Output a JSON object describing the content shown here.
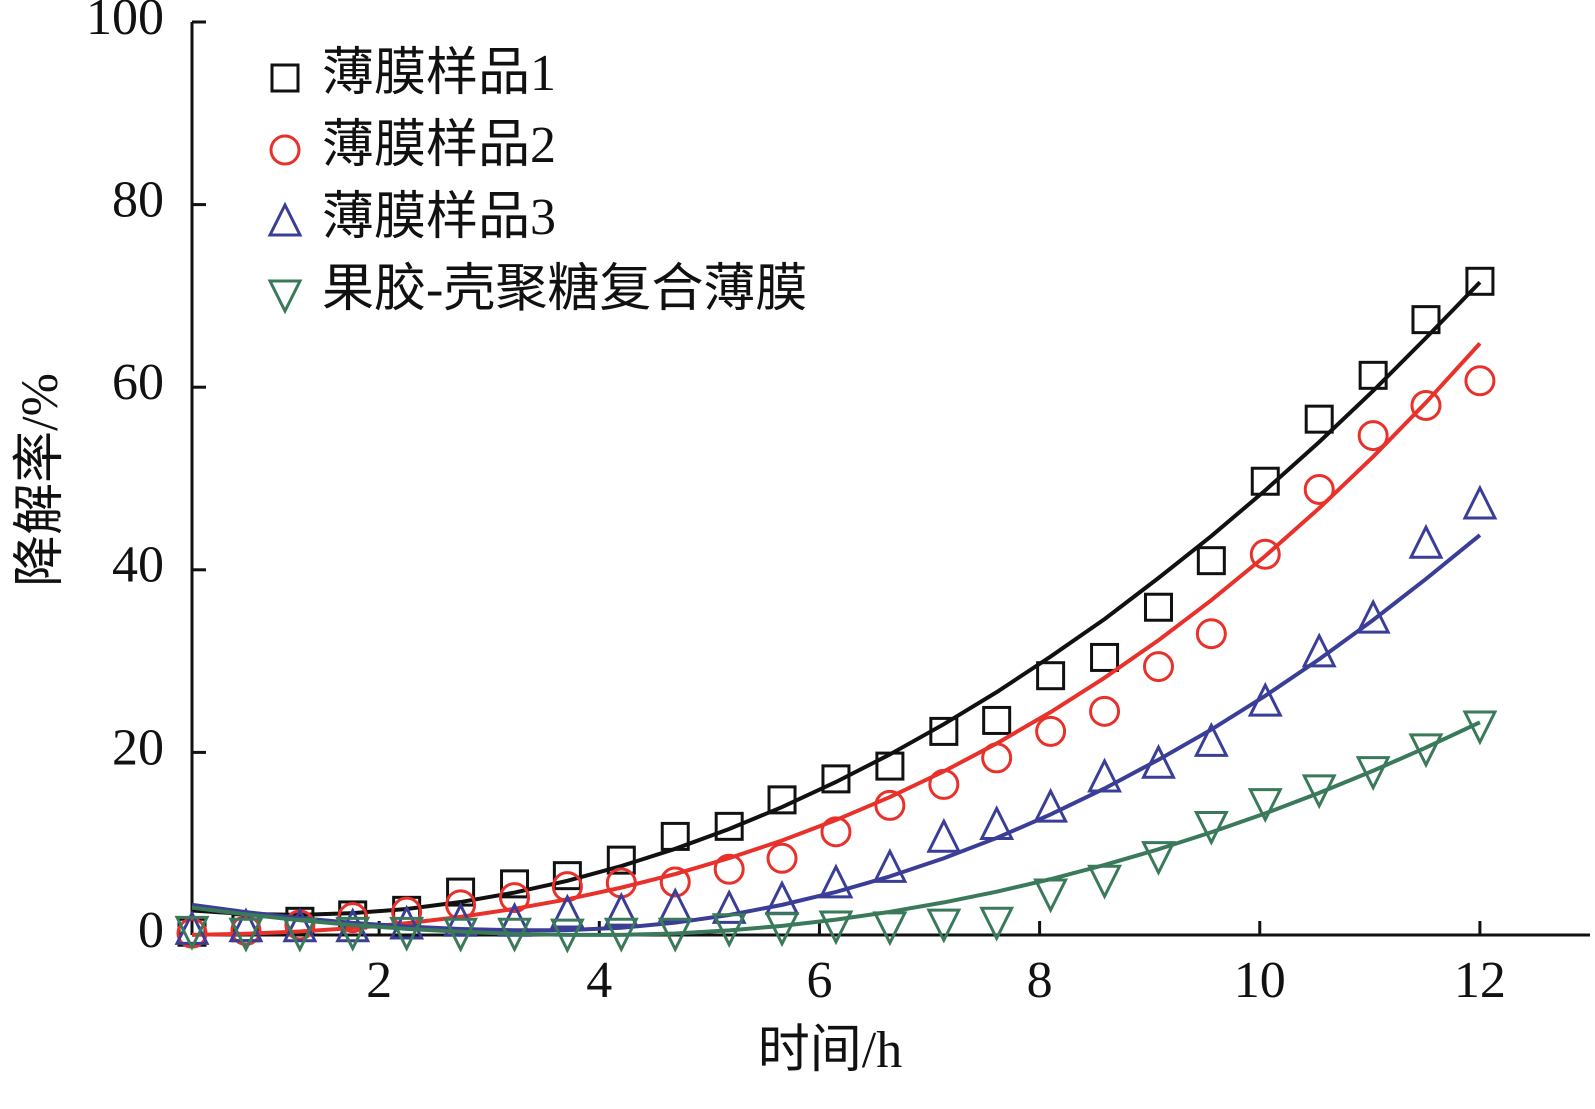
{
  "chart_data": {
    "type": "scatter",
    "xlabel": "时间/h",
    "ylabel": "降解率/%",
    "xlim": [
      0.3,
      13
    ],
    "ylim": [
      0,
      100
    ],
    "xticks": [
      2,
      4,
      6,
      8,
      10,
      12
    ],
    "yticks": [
      0,
      20,
      40,
      60,
      80,
      100
    ],
    "legend": "upper left",
    "x": [
      0.3,
      0.79,
      1.28,
      1.76,
      2.25,
      2.74,
      3.23,
      3.71,
      4.2,
      4.69,
      5.18,
      5.66,
      6.15,
      6.64,
      7.13,
      7.61,
      8.1,
      8.59,
      9.08,
      9.56,
      10.05,
      10.54,
      11.03,
      11.51,
      12.0
    ],
    "series": [
      {
        "name": "薄膜样品1",
        "color": "#111111",
        "marker": "square",
        "values": [
          0.3,
          0.8,
          1.5,
          2.2,
          2.7,
          4.7,
          5.6,
          6.5,
          8.2,
          10.8,
          11.9,
          14.8,
          17.1,
          18.5,
          22.3,
          23.5,
          28.4,
          30.4,
          35.9,
          41,
          49.7,
          56.5,
          61.3,
          67.4,
          71.6
        ],
        "fit": [
          2.68,
          2.3,
          2.2,
          2.39,
          2.85,
          3.61,
          4.65,
          5.94,
          7.55,
          9.44,
          11.61,
          14.01,
          16.76,
          19.78,
          23.09,
          26.6,
          30.5,
          34.6,
          39.1,
          43.7,
          48.7,
          54.0,
          59.6,
          65.4,
          71.5
        ]
      },
      {
        "name": "薄膜样品2",
        "color": "#e8312b",
        "marker": "circle",
        "values": [
          0.2,
          0.5,
          1.1,
          1.9,
          2.5,
          3.3,
          4.1,
          5.3,
          5.7,
          5.8,
          7.2,
          8.4,
          11.3,
          14.2,
          16.5,
          19.4,
          22.3,
          24.5,
          29.4,
          33,
          41.7,
          48.8,
          54.7,
          58,
          60.7
        ],
        "fit": [
          0.02,
          0.14,
          0.39,
          0.76,
          1.29,
          1.99,
          2.87,
          3.91,
          5.19,
          6.68,
          8.42,
          10.35,
          12.59,
          15.11,
          17.92,
          20.98,
          24.41,
          28.17,
          32.28,
          36.67,
          41.51,
          46.75,
          52.39,
          58.32,
          64.8
        ]
      },
      {
        "name": "薄膜样品3",
        "color": "#3b3e96",
        "marker": "triangle",
        "values": [
          0.5,
          0.8,
          0.8,
          0.8,
          1.1,
          1.4,
          1.4,
          2.3,
          2.5,
          3,
          2.8,
          3.8,
          5.6,
          7.3,
          10.6,
          12,
          13.9,
          17.2,
          18.7,
          21.1,
          25.5,
          30.9,
          34.6,
          42.8,
          47.1
        ],
        "fit": [
          3.3,
          2.51,
          1.85,
          1.33,
          0.93,
          0.66,
          0.52,
          0.53,
          0.79,
          1.35,
          2.19,
          3.3,
          4.71,
          6.42,
          8.41,
          10.63,
          13.2,
          16.05,
          19.2,
          22.5,
          26.2,
          30.2,
          34.5,
          39.0,
          43.8
        ]
      },
      {
        "name": "果胶-壳聚糖复合薄膜",
        "color": "#3a7a5a",
        "marker": "triangle-down",
        "values": [
          0.5,
          0.3,
          0.3,
          0.4,
          0.4,
          0.3,
          0.3,
          0.2,
          0.3,
          0.3,
          0.8,
          0.9,
          1.1,
          1.0,
          1.3,
          1.5,
          4.6,
          6.1,
          8.7,
          12,
          14.5,
          16,
          18,
          20.5,
          23
        ],
        "fit": [
          3.0,
          2.26,
          1.62,
          1.1,
          0.67,
          0.35,
          0.13,
          0.02,
          0.01,
          0.17,
          0.51,
          1.0,
          1.68,
          2.54,
          3.57,
          4.74,
          6.12,
          7.67,
          9.39,
          11.25,
          13.32,
          15.57,
          17.99,
          20.53,
          23.3
        ]
      }
    ]
  }
}
